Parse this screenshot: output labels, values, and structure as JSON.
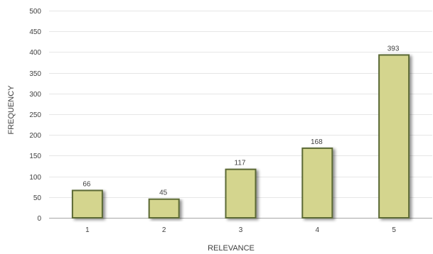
{
  "chart_data": {
    "type": "bar",
    "title": "",
    "xlabel": "RELEVANCE",
    "ylabel": "FREQUENCY",
    "categories": [
      "1",
      "2",
      "3",
      "4",
      "5"
    ],
    "values": [
      66,
      45,
      117,
      168,
      393
    ],
    "data_labels": [
      "66",
      "45",
      "117",
      "168",
      "393"
    ],
    "ylim": [
      0,
      500
    ],
    "yticks": [
      0,
      50,
      100,
      150,
      200,
      250,
      300,
      350,
      400,
      450,
      500
    ],
    "ytick_labels": [
      "0",
      "50",
      "100",
      "150",
      "200",
      "250",
      "300",
      "350",
      "400",
      "450",
      "500"
    ],
    "grid": true,
    "legend": "none",
    "colors": {
      "bar_fill": "#d4d58e",
      "bar_stroke": "#5b6a36",
      "grid": "#e6e6e6",
      "axis": "#a6a6a6",
      "text": "#404040"
    }
  }
}
